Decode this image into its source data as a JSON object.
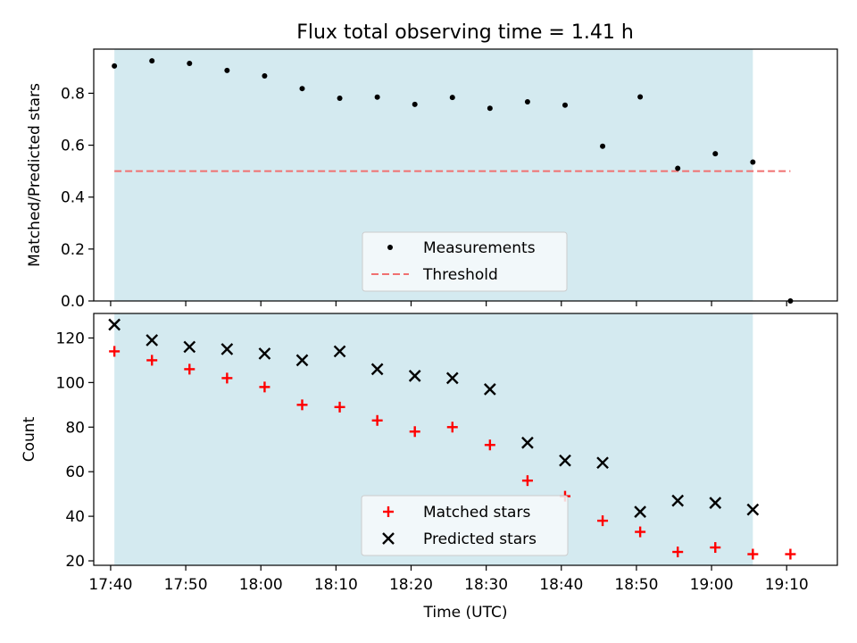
{
  "chart_data": [
    {
      "type": "scatter",
      "title": "Flux total observing time = 1.41 h",
      "xlabel": "",
      "ylabel": "Matched/Predicted stars",
      "ylim": [
        0,
        0.97
      ],
      "yticks": [
        "0.0",
        "0.2",
        "0.4",
        "0.6",
        "0.8"
      ],
      "x": [
        "17:40:30",
        "17:45:30",
        "17:50:30",
        "17:55:30",
        "18:00:30",
        "18:05:30",
        "18:10:30",
        "18:15:30",
        "18:20:30",
        "18:25:30",
        "18:30:30",
        "18:35:30",
        "18:40:30",
        "18:45:30",
        "18:50:30",
        "18:55:30",
        "19:00:30",
        "19:05:30",
        "19:10:30"
      ],
      "series": [
        {
          "name": "Measurements",
          "marker": "dot",
          "color": "#000000",
          "values": [
            0.905,
            0.925,
            0.915,
            0.888,
            0.867,
            0.818,
            0.781,
            0.785,
            0.757,
            0.784,
            0.742,
            0.767,
            0.754,
            0.596,
            0.786,
            0.511,
            0.567,
            0.535,
            0.0
          ]
        },
        {
          "name": "Threshold",
          "style": "dashed-line",
          "color": "#f07070",
          "x_range": [
            "17:40:30",
            "19:10:30"
          ],
          "value": 0.5
        }
      ],
      "shaded_interval": [
        "17:40:30",
        "19:05:30"
      ],
      "shade_color": "#d4eaf0",
      "legend": "lower-center"
    },
    {
      "type": "scatter",
      "xlabel": "Time (UTC)",
      "ylabel": "Count",
      "ylim": [
        18,
        131
      ],
      "yticks": [
        "20",
        "40",
        "60",
        "80",
        "100",
        "120"
      ],
      "xticks": [
        "17:40",
        "17:50",
        "18:00",
        "18:10",
        "18:20",
        "18:30",
        "18:40",
        "18:50",
        "19:00",
        "19:10"
      ],
      "x": [
        "17:40:30",
        "17:45:30",
        "17:50:30",
        "17:55:30",
        "18:00:30",
        "18:05:30",
        "18:10:30",
        "18:15:30",
        "18:20:30",
        "18:25:30",
        "18:30:30",
        "18:35:30",
        "18:40:30",
        "18:45:30",
        "18:50:30",
        "18:55:30",
        "19:00:30",
        "19:05:30",
        "19:10:30"
      ],
      "series": [
        {
          "name": "Matched stars",
          "marker": "plus",
          "color": "#ff0000",
          "values": [
            114,
            110,
            106,
            102,
            98,
            90,
            89,
            83,
            78,
            80,
            72,
            56,
            49,
            38,
            33,
            24,
            26,
            23,
            23
          ]
        },
        {
          "name": "Predicted stars",
          "marker": "x",
          "color": "#000000",
          "values": [
            126,
            119,
            116,
            115,
            113,
            110,
            114,
            106,
            103,
            102,
            97,
            73,
            65,
            64,
            42,
            47,
            46,
            43,
            null
          ]
        }
      ],
      "shaded_interval": [
        "17:40:30",
        "19:05:30"
      ],
      "shade_color": "#d4eaf0",
      "legend": "lower-center"
    }
  ]
}
